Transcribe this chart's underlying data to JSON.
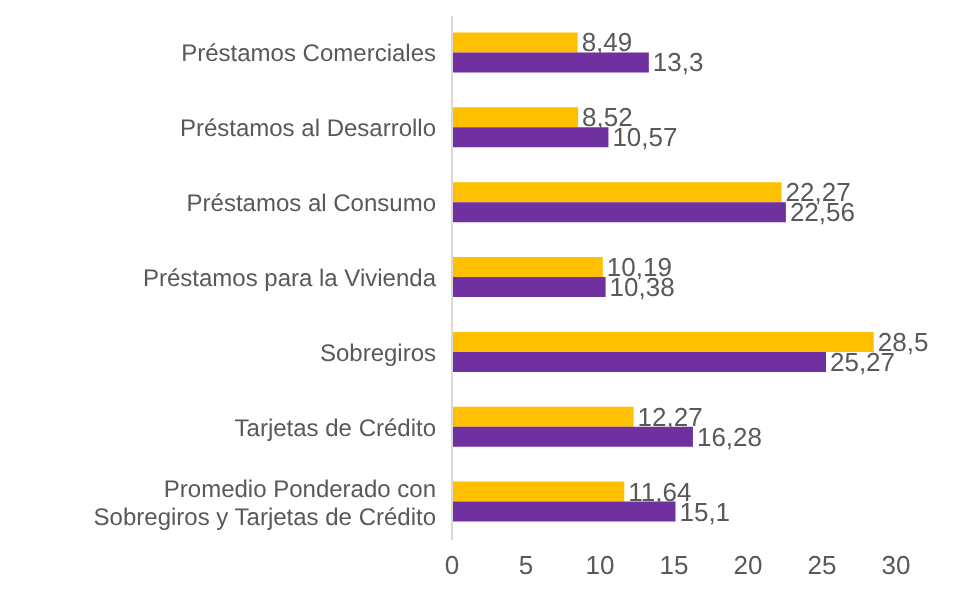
{
  "chart_data": {
    "type": "bar",
    "orientation": "horizontal",
    "categories": [
      "Préstamos Comerciales",
      "Préstamos al Desarrollo",
      "Préstamos al Consumo",
      "Préstamos para la Vivienda",
      "Sobregiros",
      "Tarjetas de Crédito",
      "Promedio Ponderado con Sobregiros y Tarjetas de Crédito"
    ],
    "series": [
      {
        "color": "#ffc000",
        "values": [
          8.49,
          8.52,
          22.27,
          10.19,
          28.5,
          12.27,
          11.64
        ],
        "value_labels": [
          "8,49",
          "8,52",
          "22,27",
          "10,19",
          "28,5",
          "12,27",
          "11,64"
        ]
      },
      {
        "color": "#7030a0",
        "values": [
          13.3,
          10.57,
          22.56,
          10.38,
          25.27,
          16.28,
          15.1
        ],
        "value_labels": [
          "13,3",
          "10,57",
          "22,56",
          "10,38",
          "25,27",
          "16,28",
          "15,1"
        ]
      }
    ],
    "xlim": [
      0,
      30
    ],
    "xticks": [
      0,
      5,
      10,
      15,
      20,
      25,
      30
    ],
    "grid": false,
    "legend": false
  }
}
